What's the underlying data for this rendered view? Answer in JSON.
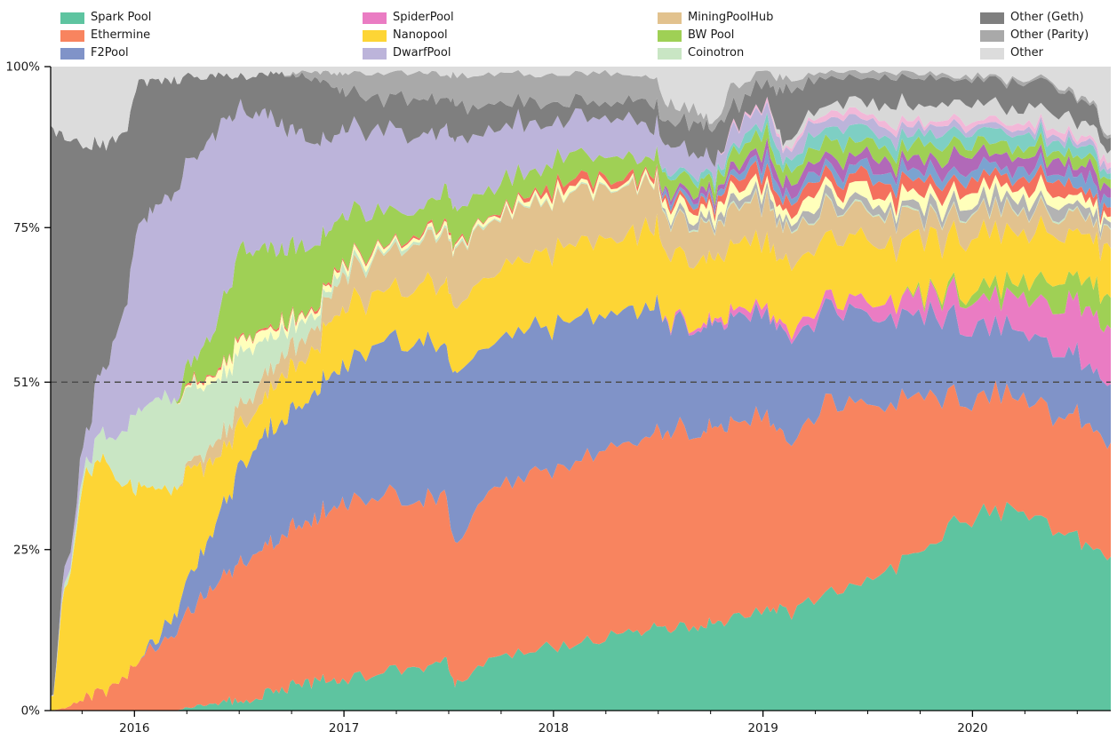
{
  "legend": {
    "columns": [
      {
        "items": [
          {
            "label": "Spark Pool",
            "color": "#5ec4a0"
          },
          {
            "label": "Ethermine",
            "color": "#f8845f"
          },
          {
            "label": "F2Pool",
            "color": "#8093c8"
          }
        ]
      },
      {
        "items": [
          {
            "label": "SpiderPool",
            "color": "#ea7cc3"
          },
          {
            "label": "Nanopool",
            "color": "#fdd535"
          },
          {
            "label": "DwarfPool",
            "color": "#bcb4da"
          }
        ]
      },
      {
        "items": [
          {
            "label": "MiningPoolHub",
            "color": "#e2c28e"
          },
          {
            "label": "BW Pool",
            "color": "#9fd055"
          },
          {
            "label": "Coinotron",
            "color": "#c9e6c4"
          }
        ]
      },
      {
        "items": [
          {
            "label": "Other (Geth)",
            "color": "#7f7f7f"
          },
          {
            "label": "Other (Parity)",
            "color": "#a9a9a9"
          },
          {
            "label": "Other",
            "color": "#dcdcdc"
          }
        ]
      }
    ]
  },
  "chart_data": {
    "type": "area",
    "stacked": true,
    "units": "percent_share_of_total",
    "title": "",
    "xlabel": "",
    "ylabel": "",
    "x_axis": {
      "range": [
        2015.6,
        2020.66
      ],
      "major_ticks": [
        {
          "v": 2016,
          "label": "2016"
        },
        {
          "v": 2017,
          "label": "2017"
        },
        {
          "v": 2018,
          "label": "2018"
        },
        {
          "v": 2019,
          "label": "2019"
        },
        {
          "v": 2020,
          "label": "2020"
        }
      ],
      "minor_tick_step": 0.25
    },
    "y_axis": {
      "range": [
        0,
        100
      ],
      "ticks": [
        {
          "v": 0,
          "label": "0%"
        },
        {
          "v": 25,
          "label": "25%"
        },
        {
          "v": 51,
          "label": "51%"
        },
        {
          "v": 75,
          "label": "75%"
        },
        {
          "v": 100,
          "label": "100%"
        }
      ]
    },
    "reference_line": {
      "value": 51,
      "style": "dashed",
      "color": "#4d4d4d"
    },
    "x_years": [
      2015.6,
      2015.68,
      2015.77,
      2015.85,
      2015.94,
      2016.02,
      2016.1,
      2016.19,
      2016.27,
      2016.36,
      2016.44,
      2016.52,
      2016.61,
      2016.69,
      2016.77,
      2016.86,
      2016.94,
      2017.02,
      2017.19,
      2017.36,
      2017.48,
      2017.54,
      2017.69,
      2017.86,
      2018.02,
      2018.19,
      2018.36,
      2018.48,
      2018.56,
      2018.69,
      2018.77,
      2018.86,
      2019.02,
      2019.11,
      2019.27,
      2019.44,
      2019.61,
      2019.77,
      2019.94,
      2020.11,
      2020.27,
      2020.44,
      2020.56,
      2020.66
    ],
    "series": [
      {
        "name": "Spark Pool",
        "in_legend": true,
        "color": "#5ec4a0",
        "values": [
          0,
          0,
          0,
          0,
          0,
          0,
          0,
          0,
          0.5,
          1,
          1.5,
          2,
          2.5,
          3,
          4,
          4.5,
          5,
          5,
          6,
          7,
          7.5,
          4,
          8,
          9,
          10,
          11,
          12,
          13,
          13,
          14,
          14,
          15,
          16,
          15,
          18,
          20,
          23,
          26,
          31,
          33,
          33,
          29,
          27,
          25
        ]
      },
      {
        "name": "Ethermine",
        "in_legend": true,
        "color": "#f8845f",
        "values": [
          0,
          0.5,
          2,
          3,
          5,
          8,
          10,
          12,
          15,
          18,
          20,
          22,
          23,
          24,
          25,
          26,
          27,
          28,
          27,
          26,
          26,
          20,
          27,
          28,
          28,
          29,
          30,
          31,
          32,
          31,
          31,
          31,
          30,
          26,
          30,
          29,
          27,
          25,
          20,
          19,
          19,
          19,
          19,
          18.5
        ]
      },
      {
        "name": "F2Pool",
        "in_legend": true,
        "color": "#8093c8",
        "values": [
          0,
          0,
          0,
          0,
          0,
          0,
          1,
          3,
          6,
          8,
          12,
          16,
          17,
          18,
          19,
          20,
          21,
          22,
          24,
          25,
          24,
          24,
          23,
          23,
          23,
          22,
          21,
          20,
          18,
          17,
          16,
          17,
          16,
          16,
          15.5,
          14.5,
          14,
          13,
          12.5,
          11.5,
          11,
          10.5,
          9.5,
          9.5
        ]
      },
      {
        "name": "SpiderPool",
        "in_legend": true,
        "color": "#ea7cc3",
        "values": [
          0,
          0,
          0,
          0,
          0,
          0,
          0,
          0,
          0,
          0,
          0,
          0,
          0,
          0,
          0,
          0,
          0,
          0,
          0,
          0,
          0,
          0,
          0,
          0,
          0,
          0,
          0,
          0,
          0.5,
          0.5,
          0.5,
          1,
          1,
          1,
          1.5,
          2,
          2.5,
          3,
          4,
          5,
          6,
          8,
          9,
          9
        ]
      },
      {
        "name": "unlabeled-green-band",
        "in_legend": false,
        "color": "#9fd055",
        "values": [
          0,
          0,
          0,
          0,
          0,
          0,
          0,
          0,
          0,
          0,
          0,
          0,
          0,
          0,
          0,
          0,
          0,
          0,
          0,
          0,
          0,
          0,
          0,
          0,
          0,
          0,
          0,
          0,
          0,
          0,
          0,
          0,
          0,
          0,
          0,
          0,
          0,
          0.5,
          1,
          2,
          3,
          4,
          4.5,
          5
        ]
      },
      {
        "name": "Nanopool",
        "in_legend": true,
        "color": "#fdd535",
        "values": [
          2,
          20,
          35,
          36,
          30,
          27,
          23,
          20,
          16,
          12,
          8,
          6,
          6,
          6.5,
          7,
          7,
          8,
          9,
          8,
          9,
          10,
          10,
          11,
          11,
          12,
          12,
          12,
          12,
          11,
          11,
          10,
          11,
          10,
          10,
          10,
          10,
          9.5,
          9,
          8.5,
          8.5,
          8.5,
          7.5,
          7.5,
          8
        ]
      },
      {
        "name": "MiningPoolHub",
        "in_legend": true,
        "color": "#e2c28e",
        "values": [
          0,
          0,
          0,
          0,
          0,
          0,
          0,
          0,
          1,
          2,
          2.5,
          3,
          3,
          3,
          3.5,
          4,
          4.5,
          5,
          6,
          7,
          8,
          8,
          8,
          8,
          8,
          8,
          8,
          7,
          6,
          6,
          5,
          6,
          5.5,
          5,
          5,
          4.5,
          4.5,
          3.5,
          4,
          3.5,
          3.5,
          3,
          3,
          3
        ]
      },
      {
        "name": "Coinotron",
        "in_legend": true,
        "color": "#c9e6c4",
        "values": [
          0,
          1,
          2,
          4,
          8,
          12,
          14,
          14,
          12,
          10,
          9,
          8,
          6,
          4,
          3,
          2,
          1.5,
          1,
          0.5,
          0.5,
          0.3,
          0.3,
          0.3,
          0.2,
          0.2,
          0.2,
          0.2,
          0.2,
          0.2,
          0.2,
          0.2,
          0.2,
          0.2,
          0.2,
          0.2,
          0.2,
          0.2,
          0.2,
          0.2,
          0.2,
          0.2,
          0.2,
          0.2,
          0.2
        ]
      },
      {
        "name": "unlabeled-gray-strip",
        "in_legend": false,
        "color": "#b3b3b3",
        "values": [
          0,
          0,
          0,
          0,
          0,
          0,
          0,
          0,
          0,
          0,
          0,
          0,
          0,
          0,
          0,
          0,
          0,
          0,
          0,
          0,
          0,
          0,
          0,
          0,
          0,
          0,
          0,
          0,
          0.8,
          1,
          1,
          1,
          1.5,
          1,
          1.5,
          1.5,
          1.5,
          1.5,
          1.5,
          1.5,
          1.5,
          1.5,
          1.5,
          1
        ]
      },
      {
        "name": "unlabeled-pale-yellow",
        "in_legend": false,
        "color": "#ffffbb",
        "values": [
          0,
          0,
          0,
          0,
          0,
          0,
          0,
          0,
          0.5,
          1,
          1.5,
          2,
          1.5,
          1,
          1,
          0.8,
          0.8,
          0.8,
          0.5,
          0.5,
          0.5,
          0.5,
          0.6,
          0.8,
          0.8,
          0.8,
          0.6,
          0.5,
          1.5,
          1.5,
          1.5,
          1.5,
          1.5,
          1.5,
          2,
          2,
          2,
          2,
          2,
          2,
          2,
          1.5,
          1.5,
          1
        ]
      },
      {
        "name": "unlabeled-red-strip",
        "in_legend": false,
        "color": "#f4705e",
        "values": [
          0,
          0,
          0,
          0,
          0,
          0,
          0,
          0,
          0.3,
          0.3,
          0.3,
          0.3,
          0.3,
          0.3,
          0.3,
          0.3,
          0.3,
          0.3,
          0.3,
          0.3,
          0.3,
          0.3,
          0.3,
          0.5,
          1,
          1,
          0.8,
          0.6,
          1,
          1,
          1,
          1.5,
          2,
          1.5,
          2,
          2,
          2,
          2,
          2,
          2,
          2,
          2,
          1.5,
          1.5
        ]
      },
      {
        "name": "unlabeled-steel-blue-strip",
        "in_legend": false,
        "color": "#7ba3d0",
        "values": [
          0,
          0,
          0,
          0,
          0,
          0,
          0,
          0,
          0,
          0,
          0,
          0,
          0,
          0,
          0,
          0,
          0,
          0,
          0,
          0,
          0,
          0,
          0,
          0,
          0,
          0,
          0,
          0,
          0.8,
          0.8,
          0.8,
          1,
          1.5,
          1,
          1.5,
          1.5,
          1.5,
          1.5,
          1.5,
          1.5,
          1.5,
          1.5,
          2,
          1.5
        ]
      },
      {
        "name": "unlabeled-violet-strip",
        "in_legend": false,
        "color": "#b169b8",
        "values": [
          0,
          0,
          0,
          0,
          0,
          0,
          0,
          0,
          0,
          0,
          0,
          0,
          0,
          0,
          0,
          0,
          0,
          0,
          0,
          0,
          0,
          0,
          0,
          0,
          0,
          0,
          0,
          0,
          0.8,
          0.8,
          0.8,
          1,
          1.5,
          1.5,
          2,
          2,
          2,
          2,
          2.5,
          2,
          2,
          2,
          2,
          1.5
        ]
      },
      {
        "name": "BW Pool",
        "in_legend": true,
        "color": "#9fd055",
        "values": [
          0,
          0,
          0,
          0,
          0,
          0,
          0,
          0,
          3,
          6,
          10,
          14,
          13,
          12,
          11,
          10,
          8,
          7,
          5,
          4,
          5,
          5,
          4,
          3.5,
          4,
          3.5,
          3,
          2.5,
          2.5,
          2,
          2,
          2,
          2.5,
          2,
          2.5,
          2.5,
          2.5,
          2.5,
          2,
          2,
          1.5,
          2,
          1.5,
          1.5
        ]
      },
      {
        "name": "unlabeled-cyan-strip",
        "in_legend": false,
        "color": "#7ecfc4",
        "values": [
          0,
          0,
          0,
          0,
          0,
          0,
          0,
          0,
          0,
          0,
          0,
          0,
          0,
          0,
          0,
          0,
          0,
          0,
          0,
          0,
          0,
          0,
          0,
          0,
          0,
          0,
          0,
          0,
          0.8,
          0.8,
          0.8,
          1,
          2,
          1.5,
          2,
          2.5,
          2,
          2,
          2,
          2,
          2,
          2,
          1.5,
          1
        ]
      },
      {
        "name": "DwarfPool",
        "in_legend": true,
        "color": "#bcb4da",
        "values": [
          0,
          2,
          5,
          10,
          18,
          28,
          30,
          32,
          32,
          31,
          27,
          22,
          21,
          20,
          18,
          16,
          14,
          13,
          13,
          11,
          10,
          10,
          9,
          8,
          6,
          6,
          5.5,
          5,
          4,
          3.5,
          2.5,
          3,
          2,
          2,
          2,
          1.5,
          1.5,
          1.5,
          1,
          1,
          1,
          1,
          1,
          1
        ]
      },
      {
        "name": "unlabeled-pink-strip",
        "in_legend": false,
        "color": "#f2b8d8",
        "values": [
          0,
          0,
          0,
          0,
          0,
          0,
          0,
          0,
          0,
          0,
          0,
          0,
          0,
          0,
          0,
          0,
          0,
          0,
          0,
          0,
          0,
          0,
          0,
          0,
          0,
          0,
          0,
          0,
          0,
          0,
          0,
          0.5,
          0.5,
          0.5,
          0.8,
          0.8,
          0.8,
          0.8,
          0.8,
          0.8,
          0.8,
          1,
          0.8,
          0.8
        ]
      },
      {
        "name": "unlabeled-light-gray-band",
        "in_legend": false,
        "color": "#d8d8d8",
        "values": [
          0,
          0,
          0,
          0,
          0,
          0,
          0,
          0,
          0,
          0,
          0,
          0,
          0,
          0,
          0,
          0,
          0,
          0,
          0,
          0,
          0,
          0,
          0,
          0,
          0,
          0,
          0,
          0,
          0,
          0,
          0,
          0,
          0,
          1,
          1,
          1.5,
          2.5,
          2.5,
          2.5,
          2.5,
          2.5,
          3,
          2.5,
          2
        ]
      },
      {
        "name": "Other (Geth)",
        "in_legend": true,
        "color": "#7f7f7f",
        "values": [
          88,
          65,
          44,
          35,
          28,
          22,
          20,
          17,
          13,
          10,
          7,
          5,
          6,
          8,
          9,
          10,
          8,
          6,
          5,
          6,
          5,
          5,
          4,
          3.5,
          3,
          3,
          3,
          3.5,
          4,
          5,
          5,
          4,
          3.5,
          8,
          4,
          4,
          4,
          4,
          4,
          4,
          4.5,
          4,
          3.5,
          2
        ]
      },
      {
        "name": "Other (Parity)",
        "in_legend": true,
        "color": "#a9a9a9",
        "values": [
          0,
          0,
          0,
          0,
          0,
          0,
          0,
          0,
          0,
          0,
          0,
          0,
          0,
          0,
          0.5,
          1,
          2,
          3,
          4,
          4.5,
          4.5,
          4.5,
          4.5,
          4.5,
          4.5,
          4.5,
          4,
          4,
          3,
          2,
          1,
          3,
          2,
          2,
          1,
          1,
          0.8,
          0.8,
          0.5,
          0.5,
          0.5,
          0.5,
          0.5,
          0.5
        ]
      },
      {
        "name": "Other",
        "in_legend": true,
        "color": "#dcdcdc",
        "values": [
          10,
          11.5,
          12,
          12,
          11,
          3,
          2,
          2,
          1.5,
          1.5,
          1.5,
          1.5,
          1,
          1,
          1,
          1,
          1,
          1,
          1,
          1,
          1.2,
          1.2,
          1.2,
          1,
          1.5,
          1,
          1,
          2,
          6,
          7,
          9,
          2.5,
          1,
          2,
          1,
          1,
          1,
          1,
          1.5,
          2,
          2,
          3,
          6,
          11
        ]
      }
    ]
  }
}
